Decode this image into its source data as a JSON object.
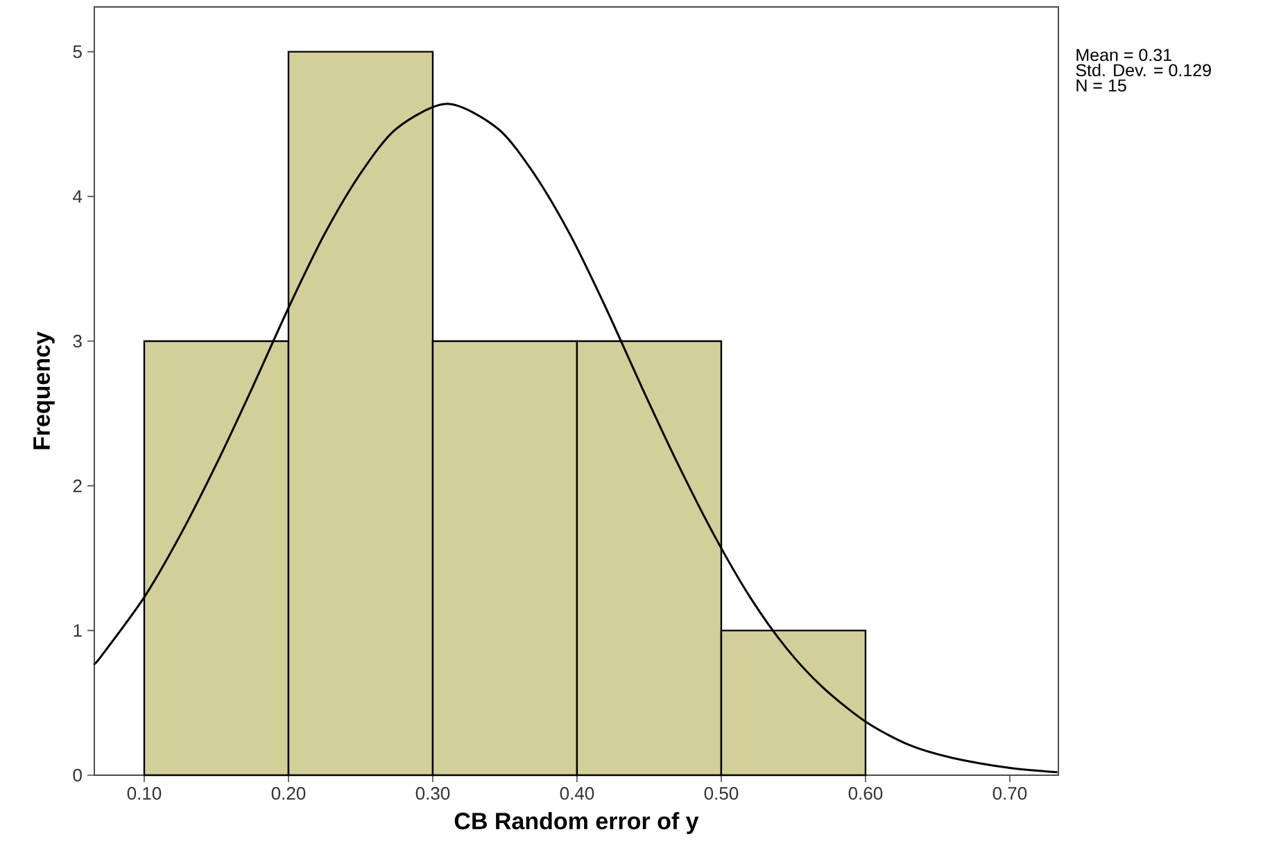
{
  "chart_data": {
    "type": "histogram",
    "xlabel": "CB Random error of y",
    "ylabel": "Frequency",
    "annotations": [
      "Mean = 0.31",
      "Std. Dev. = 0.129",
      "N = 15"
    ],
    "bins": [
      0.1,
      0.2,
      0.3,
      0.4,
      0.5,
      0.6
    ],
    "series": [
      {
        "color": "#d3cf98",
        "values": [
          3,
          5,
          3,
          3,
          1
        ]
      },
      {
        "type": "line",
        "color": "#000000",
        "x": [
          0.0654,
          0.07,
          0.1,
          0.125,
          0.15,
          0.175,
          0.2,
          0.225,
          0.25,
          0.275,
          0.31,
          0.345,
          0.37,
          0.395,
          0.42,
          0.445,
          0.47,
          0.495,
          0.52,
          0.545,
          0.57,
          0.6,
          0.63,
          0.66,
          0.7,
          0.733
        ],
        "values": [
          0.77,
          0.82,
          1.23,
          1.66,
          2.15,
          2.68,
          3.23,
          3.74,
          4.16,
          4.47,
          4.64,
          4.47,
          4.16,
          3.74,
          3.23,
          2.68,
          2.15,
          1.66,
          1.23,
          0.88,
          0.61,
          0.37,
          0.21,
          0.12,
          0.05,
          0.02
        ]
      }
    ],
    "xlim": [
      0.0654,
      0.7337
    ],
    "ylim": [
      0,
      5.31
    ],
    "xticks": [
      {
        "value": 0.1,
        "label": "0.10"
      },
      {
        "value": 0.2,
        "label": "0.20"
      },
      {
        "value": 0.3,
        "label": "0.30"
      },
      {
        "value": 0.4,
        "label": "0.40"
      },
      {
        "value": 0.5,
        "label": "0.50"
      },
      {
        "value": 0.6,
        "label": "0.60"
      },
      {
        "value": 0.7,
        "label": "0.70"
      }
    ],
    "yticks": [
      0,
      1,
      2,
      3,
      4,
      5
    ]
  }
}
